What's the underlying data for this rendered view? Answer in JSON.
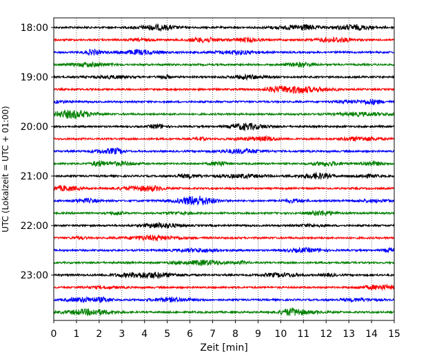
{
  "chart_data": {
    "type": "line",
    "title": "",
    "xlabel": "Zeit  [min]",
    "ylabel": "UTC (Lokalzeit = UTC + 01:00)",
    "xlim": [
      0,
      15
    ],
    "x_ticks": [
      "0",
      "1",
      "2",
      "3",
      "4",
      "5",
      "6",
      "7",
      "8",
      "9",
      "10",
      "11",
      "12",
      "13",
      "14",
      "15"
    ],
    "x_grid": "dotted vertical gridlines at each minute",
    "y_ticks": [
      "18:00",
      "19:00",
      "20:00",
      "21:00",
      "22:00",
      "23:00"
    ],
    "trace_interval_minutes": 15,
    "trace_start": "18:00",
    "trace_count": 24,
    "trace_colors": [
      "#000000",
      "#ff0000",
      "#0000ff",
      "#008000"
    ],
    "series": [
      {
        "start": "18:00",
        "color": "#000000"
      },
      {
        "start": "18:15",
        "color": "#ff0000"
      },
      {
        "start": "18:30",
        "color": "#0000ff"
      },
      {
        "start": "18:45",
        "color": "#008000"
      },
      {
        "start": "19:00",
        "color": "#000000"
      },
      {
        "start": "19:15",
        "color": "#ff0000"
      },
      {
        "start": "19:30",
        "color": "#0000ff"
      },
      {
        "start": "19:45",
        "color": "#008000"
      },
      {
        "start": "20:00",
        "color": "#000000"
      },
      {
        "start": "20:15",
        "color": "#ff0000"
      },
      {
        "start": "20:30",
        "color": "#0000ff"
      },
      {
        "start": "20:45",
        "color": "#008000"
      },
      {
        "start": "21:00",
        "color": "#000000"
      },
      {
        "start": "21:15",
        "color": "#ff0000"
      },
      {
        "start": "21:30",
        "color": "#0000ff"
      },
      {
        "start": "21:45",
        "color": "#008000"
      },
      {
        "start": "22:00",
        "color": "#000000"
      },
      {
        "start": "22:15",
        "color": "#ff0000"
      },
      {
        "start": "22:30",
        "color": "#0000ff"
      },
      {
        "start": "22:45",
        "color": "#008000"
      },
      {
        "start": "23:00",
        "color": "#000000"
      },
      {
        "start": "23:15",
        "color": "#ff0000"
      },
      {
        "start": "23:30",
        "color": "#0000ff"
      },
      {
        "start": "23:45",
        "color": "#008000"
      }
    ]
  }
}
